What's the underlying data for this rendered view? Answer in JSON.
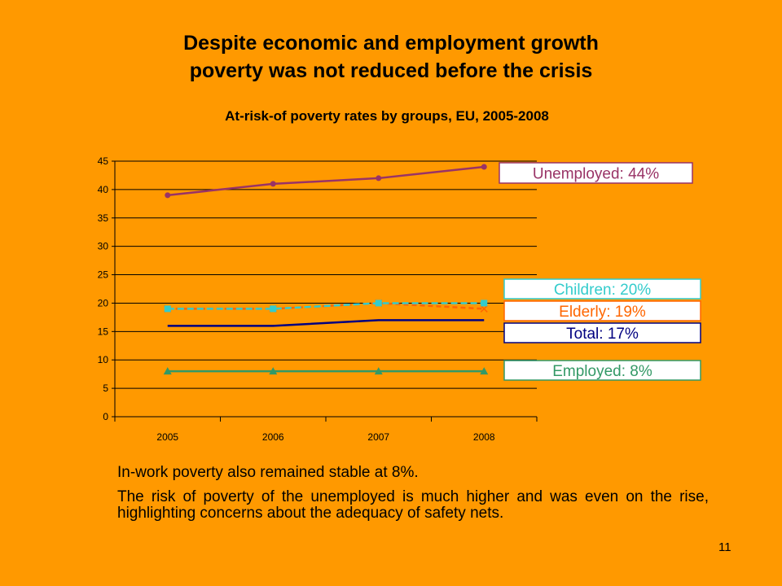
{
  "slide": {
    "title_line1": "Despite economic and employment growth",
    "title_line2": "poverty was not reduced before the crisis",
    "paragraph1": "In-work poverty also remained stable at 8%.",
    "paragraph2": "The risk of poverty of the unemployed is much higher and was even on the rise, highlighting concerns about the adequacy of safety nets.",
    "page_number": "11"
  },
  "chart_data": {
    "type": "line",
    "title": "At-risk-of poverty rates by groups, EU, 2005-2008",
    "categories": [
      "2005",
      "2006",
      "2007",
      "2008"
    ],
    "ylim": [
      0,
      45
    ],
    "yticks": [
      0,
      5,
      10,
      15,
      20,
      25,
      30,
      35,
      40,
      45
    ],
    "grid": true,
    "series": [
      {
        "name": "Unemployed: 44%",
        "values": [
          39,
          41,
          42,
          44
        ],
        "color": "#993366",
        "marker": "circle",
        "label_color": "#993366",
        "label_border": "#993366"
      },
      {
        "name": "Children: 20%",
        "values": [
          19,
          19,
          20,
          20
        ],
        "color": "#33CCCC",
        "marker": "square",
        "label_color": "#33CCCC",
        "label_border": "#33CCCC"
      },
      {
        "name": "Elderly: 19%",
        "values": [
          19,
          19,
          20,
          19
        ],
        "color": "#FF6600",
        "marker": "x",
        "label_color": "#FF6600",
        "label_border": "#FF6600"
      },
      {
        "name": "Total: 17%",
        "values": [
          16,
          16,
          17,
          17
        ],
        "color": "#000080",
        "marker": "none",
        "label_color": "#000080",
        "label_border": "#000080"
      },
      {
        "name": "Employed: 8%",
        "values": [
          8,
          8,
          8,
          8
        ],
        "color": "#339966",
        "marker": "triangle",
        "label_color": "#339966",
        "label_border": "#339966"
      }
    ]
  }
}
